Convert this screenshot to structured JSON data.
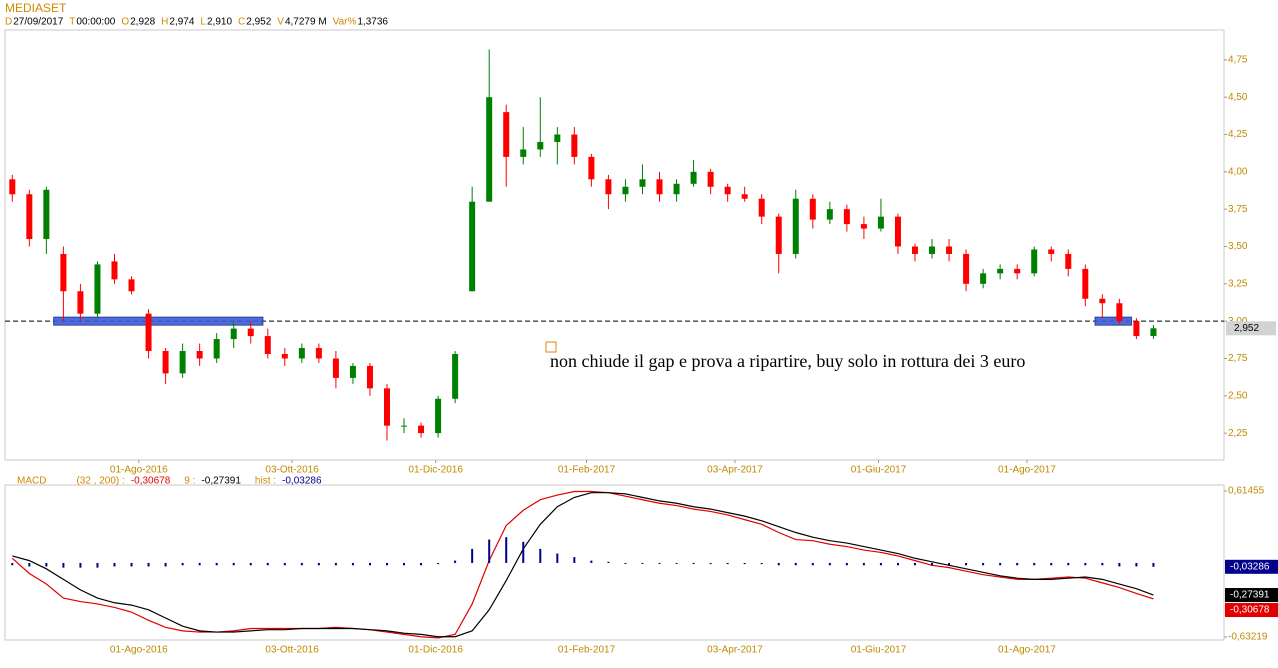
{
  "chart_data": [
    {
      "type": "candlestick",
      "title": "MEDIASET",
      "info": [
        {
          "key": "D",
          "text": "27/09/2017"
        },
        {
          "key": "T",
          "text": "00:00:00"
        },
        {
          "key": "O",
          "text": "2,928"
        },
        {
          "key": "H",
          "text": "2,974"
        },
        {
          "key": "L",
          "text": "2,910"
        },
        {
          "key": "C",
          "text": "2,952"
        },
        {
          "key": "V",
          "text": "4,7279 M"
        },
        {
          "key": "Var%",
          "text": "1,3736"
        }
      ],
      "annotation": "non chiude il gap e prova a ripartire, buy solo in rottura dei 3 euro",
      "x": [
        "2016-06-10",
        "2016-06-17",
        "2016-06-24",
        "2016-07-01",
        "2016-07-08",
        "2016-07-15",
        "2016-07-22",
        "2016-07-29",
        "2016-08-05",
        "2016-08-12",
        "2016-08-19",
        "2016-08-26",
        "2016-09-02",
        "2016-09-09",
        "2016-09-16",
        "2016-09-23",
        "2016-09-30",
        "2016-10-07",
        "2016-10-14",
        "2016-10-21",
        "2016-10-28",
        "2016-11-04",
        "2016-11-11",
        "2016-11-18",
        "2016-11-25",
        "2016-12-02",
        "2016-12-09",
        "2016-12-16",
        "2016-12-23",
        "2016-12-30",
        "2017-01-06",
        "2017-01-13",
        "2017-01-20",
        "2017-01-27",
        "2017-02-03",
        "2017-02-10",
        "2017-02-17",
        "2017-02-24",
        "2017-03-03",
        "2017-03-10",
        "2017-03-17",
        "2017-03-24",
        "2017-03-31",
        "2017-04-07",
        "2017-04-14",
        "2017-04-21",
        "2017-04-28",
        "2017-05-05",
        "2017-05-12",
        "2017-05-19",
        "2017-05-26",
        "2017-06-02",
        "2017-06-09",
        "2017-06-16",
        "2017-06-23",
        "2017-06-30",
        "2017-07-07",
        "2017-07-14",
        "2017-07-21",
        "2017-07-28",
        "2017-08-04",
        "2017-08-11",
        "2017-08-18",
        "2017-08-25",
        "2017-09-01",
        "2017-09-08",
        "2017-09-15",
        "2017-09-22"
      ],
      "open": [
        3.95,
        3.85,
        3.55,
        3.45,
        3.2,
        3.05,
        3.4,
        3.28,
        3.05,
        2.8,
        2.65,
        2.8,
        2.75,
        2.88,
        2.95,
        2.9,
        2.78,
        2.75,
        2.82,
        2.75,
        2.62,
        2.7,
        2.55,
        2.3,
        2.3,
        2.25,
        2.48,
        3.2,
        3.8,
        4.4,
        4.1,
        4.15,
        4.2,
        4.25,
        4.1,
        3.95,
        3.85,
        3.9,
        3.95,
        3.85,
        3.92,
        4.0,
        3.9,
        3.85,
        3.82,
        3.7,
        3.45,
        3.82,
        3.68,
        3.75,
        3.65,
        3.62,
        3.7,
        3.5,
        3.45,
        3.5,
        3.45,
        3.25,
        3.32,
        3.35,
        3.32,
        3.48,
        3.45,
        3.35,
        3.15,
        3.12,
        3.0,
        2.9
      ],
      "high": [
        3.98,
        3.88,
        3.9,
        3.5,
        3.25,
        3.4,
        3.45,
        3.3,
        3.08,
        2.82,
        2.85,
        2.85,
        2.92,
        3.0,
        3.0,
        2.95,
        2.82,
        2.85,
        2.85,
        2.8,
        2.72,
        2.72,
        2.58,
        2.35,
        2.32,
        2.5,
        2.8,
        3.9,
        4.82,
        4.45,
        4.3,
        4.5,
        4.3,
        4.3,
        4.12,
        3.98,
        3.95,
        4.05,
        4.0,
        3.95,
        4.08,
        4.02,
        3.92,
        3.9,
        3.85,
        3.72,
        3.88,
        3.85,
        3.8,
        3.78,
        3.7,
        3.82,
        3.72,
        3.52,
        3.55,
        3.55,
        3.48,
        3.35,
        3.38,
        3.38,
        3.5,
        3.5,
        3.48,
        3.38,
        3.18,
        3.15,
        3.02,
        2.974
      ],
      "low": [
        3.8,
        3.5,
        3.45,
        3.0,
        3.0,
        3.02,
        3.25,
        3.18,
        2.75,
        2.58,
        2.62,
        2.7,
        2.72,
        2.82,
        2.85,
        2.75,
        2.7,
        2.72,
        2.72,
        2.55,
        2.58,
        2.5,
        2.2,
        2.25,
        2.22,
        2.22,
        2.45,
        3.2,
        3.8,
        3.9,
        4.05,
        4.1,
        4.05,
        4.05,
        3.9,
        3.75,
        3.8,
        3.85,
        3.8,
        3.8,
        3.9,
        3.85,
        3.8,
        3.8,
        3.65,
        3.32,
        3.42,
        3.62,
        3.65,
        3.6,
        3.55,
        3.6,
        3.45,
        3.4,
        3.42,
        3.4,
        3.2,
        3.22,
        3.28,
        3.28,
        3.3,
        3.4,
        3.3,
        3.1,
        3.02,
        2.98,
        2.88,
        2.88
      ],
      "close": [
        3.85,
        3.55,
        3.88,
        3.2,
        3.05,
        3.38,
        3.28,
        3.2,
        2.8,
        2.65,
        2.8,
        2.75,
        2.88,
        2.95,
        2.9,
        2.78,
        2.75,
        2.82,
        2.75,
        2.62,
        2.7,
        2.55,
        2.3,
        2.3,
        2.25,
        2.48,
        2.78,
        3.8,
        4.5,
        4.1,
        4.15,
        4.2,
        4.25,
        4.1,
        3.95,
        3.85,
        3.9,
        3.95,
        3.85,
        3.92,
        4.0,
        3.9,
        3.85,
        3.82,
        3.7,
        3.45,
        3.82,
        3.68,
        3.75,
        3.65,
        3.62,
        3.7,
        3.5,
        3.45,
        3.5,
        3.45,
        3.25,
        3.32,
        3.35,
        3.32,
        3.48,
        3.45,
        3.35,
        3.15,
        3.12,
        3.0,
        2.9,
        2.952
      ],
      "up_color": "#008000",
      "down_color": "#ff0000",
      "xlim": [
        "2016-06-07",
        "2017-10-21"
      ],
      "xticks": [
        {
          "value": "2016-08-01",
          "label": "01-Ago-2016"
        },
        {
          "value": "2016-10-03",
          "label": "03-Ott-2016"
        },
        {
          "value": "2016-12-01",
          "label": "01-Dic-2016"
        },
        {
          "value": "2017-02-01",
          "label": "01-Feb-2017"
        },
        {
          "value": "2017-04-03",
          "label": "03-Apr-2017"
        },
        {
          "value": "2017-06-01",
          "label": "01-Giu-2017"
        },
        {
          "value": "2017-08-01",
          "label": "01-Ago-2017"
        }
      ],
      "ylim": [
        2.07,
        4.95
      ],
      "yticks": [
        {
          "value": 2.25,
          "label": "2,25"
        },
        {
          "value": 2.5,
          "label": "2,50"
        },
        {
          "value": 2.75,
          "label": "2,75"
        },
        {
          "value": 3.0,
          "label": "3,00"
        },
        {
          "value": 3.25,
          "label": "3,25"
        },
        {
          "value": 3.5,
          "label": "3,50"
        },
        {
          "value": 3.75,
          "label": "3,75"
        },
        {
          "value": 4.0,
          "label": "4,00"
        },
        {
          "value": 4.25,
          "label": "4,25"
        },
        {
          "value": 4.5,
          "label": "4,50"
        },
        {
          "value": 4.75,
          "label": "4,75"
        }
      ],
      "last": {
        "value": 2.952,
        "label": "2,952"
      },
      "hline": 3.0,
      "zones": [
        {
          "from": "2016-06-27",
          "to": "2016-09-21",
          "value": 3.0,
          "color": "#3b5bdb"
        },
        {
          "from": "2017-08-29",
          "to": "2017-09-13",
          "value": 3.0,
          "color": "#3b5bdb"
        }
      ]
    },
    {
      "type": "line",
      "title": "MACD",
      "series": [
        {
          "name": "(32 , 200) :",
          "color": "#e00000",
          "last_label": "-0,30678",
          "values": [
            0.04,
            -0.09,
            -0.18,
            -0.3,
            -0.33,
            -0.35,
            -0.38,
            -0.42,
            -0.49,
            -0.55,
            -0.58,
            -0.59,
            -0.59,
            -0.58,
            -0.56,
            -0.56,
            -0.56,
            -0.56,
            -0.56,
            -0.55,
            -0.56,
            -0.57,
            -0.59,
            -0.61,
            -0.63,
            -0.64,
            -0.61,
            -0.35,
            0.02,
            0.32,
            0.45,
            0.54,
            0.58,
            0.61,
            0.61,
            0.6,
            0.57,
            0.54,
            0.51,
            0.49,
            0.46,
            0.44,
            0.41,
            0.37,
            0.33,
            0.26,
            0.2,
            0.19,
            0.16,
            0.14,
            0.11,
            0.09,
            0.06,
            0.02,
            -0.02,
            -0.04,
            -0.07,
            -0.1,
            -0.12,
            -0.14,
            -0.14,
            -0.13,
            -0.12,
            -0.13,
            -0.17,
            -0.21,
            -0.26,
            -0.30678
          ]
        },
        {
          "name": "9 :",
          "color": "#000000",
          "last_label": "-0,27391",
          "values": [
            0.06,
            0.02,
            -0.05,
            -0.14,
            -0.23,
            -0.3,
            -0.34,
            -0.36,
            -0.4,
            -0.47,
            -0.54,
            -0.58,
            -0.59,
            -0.59,
            -0.58,
            -0.57,
            -0.57,
            -0.56,
            -0.56,
            -0.56,
            -0.56,
            -0.57,
            -0.58,
            -0.6,
            -0.61,
            -0.63,
            -0.63,
            -0.58,
            -0.4,
            -0.15,
            0.12,
            0.33,
            0.48,
            0.56,
            0.6,
            0.6,
            0.59,
            0.56,
            0.53,
            0.51,
            0.48,
            0.46,
            0.43,
            0.4,
            0.36,
            0.31,
            0.26,
            0.22,
            0.19,
            0.17,
            0.14,
            0.11,
            0.08,
            0.04,
            0.01,
            -0.02,
            -0.05,
            -0.08,
            -0.11,
            -0.13,
            -0.14,
            -0.14,
            -0.13,
            -0.12,
            -0.14,
            -0.18,
            -0.22,
            -0.27391
          ]
        },
        {
          "name": "hist :",
          "color": "#00008b",
          "last_label": "-0,03286",
          "style": "bars",
          "values": [
            -0.02,
            -0.03,
            -0.03,
            -0.04,
            -0.04,
            -0.04,
            -0.03,
            -0.03,
            -0.03,
            -0.03,
            -0.02,
            -0.02,
            -0.02,
            -0.02,
            -0.02,
            -0.02,
            -0.02,
            -0.02,
            -0.02,
            -0.02,
            -0.02,
            -0.02,
            -0.02,
            -0.02,
            -0.02,
            -0.01,
            0.02,
            0.12,
            0.2,
            0.22,
            0.18,
            0.12,
            0.08,
            0.05,
            0.02,
            0.01,
            0.0,
            0.0,
            0.0,
            0.0,
            -0.01,
            -0.01,
            -0.01,
            -0.01,
            -0.01,
            -0.02,
            -0.02,
            -0.02,
            -0.02,
            -0.02,
            -0.02,
            -0.02,
            -0.02,
            -0.02,
            -0.02,
            -0.02,
            -0.02,
            -0.02,
            -0.02,
            -0.02,
            -0.02,
            -0.02,
            -0.02,
            -0.02,
            -0.02,
            -0.03,
            -0.03,
            -0.03286
          ]
        }
      ],
      "ylim": [
        -0.658,
        0.6658
      ],
      "yticks": [
        {
          "value": -0.63219,
          "label": "-0,63219"
        },
        {
          "value": 0.61455,
          "label": "0,61455"
        }
      ]
    }
  ]
}
